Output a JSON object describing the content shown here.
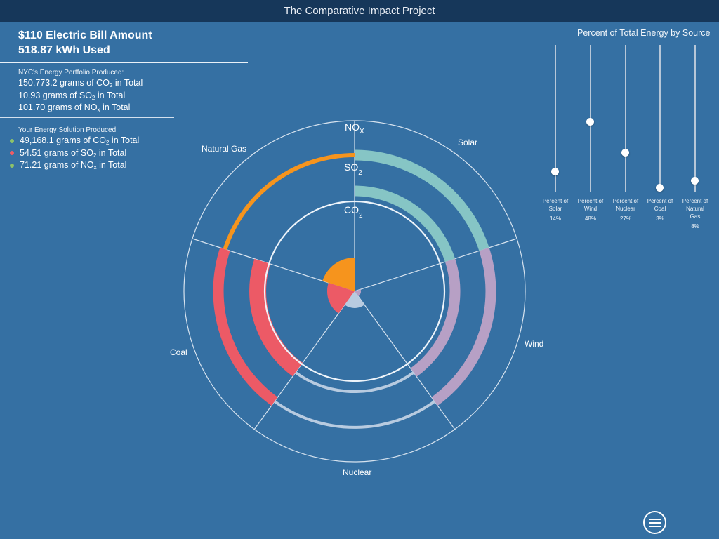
{
  "header": {
    "title": "The Comparative Impact Project"
  },
  "bill": {
    "amount": "$110 Electric Bill Amount",
    "kwh": "518.87 kWh Used"
  },
  "portfolio": {
    "heading": "NYC's Energy Portfolio Produced:",
    "co2_prefix": "150,773.2 grams of CO",
    "co2_sub": "2",
    "co2_suffix": " in Total",
    "so2_prefix": "10.93 grams of SO",
    "so2_sub": "2",
    "so2_suffix": " in Total",
    "nox_prefix": "101.70 grams of NO",
    "nox_sub": "x",
    "nox_suffix": " in Total"
  },
  "solution": {
    "heading": "Your Energy Solution Produced:",
    "co2_prefix": "49,168.1 grams of CO",
    "co2_sub": "2",
    "co2_suffix": " in Total",
    "co2_color": "#8dc26a",
    "so2_prefix": "54.51 grams of SO",
    "so2_sub": "2",
    "so2_suffix": " in Total",
    "so2_color": "#ee5d66",
    "nox_prefix": "71.21 grams of NO",
    "nox_sub": "x",
    "nox_suffix": " in Total",
    "nox_color": "#8dc26a"
  },
  "chart": {
    "ring_labels": {
      "nox_main": "NO",
      "nox_sub": "X",
      "so2_main": "SO",
      "so2_sub": "2",
      "co2_main": "CO",
      "co2_sub": "2"
    },
    "sources": [
      "Solar",
      "Wind",
      "Nuclear",
      "Coal",
      "Natural Gas"
    ],
    "colors": {
      "solar": "#86c5c5",
      "wind": "#b7a0c5",
      "nuclear": "#b8cbe0",
      "coal": "#ec5a66",
      "gas": "#f6941d"
    }
  },
  "sliders": {
    "title": "Percent of Total Energy by Source",
    "items": [
      {
        "label1": "Percent of",
        "label2": "Solar",
        "label3": "",
        "value": "14%",
        "fraction": 0.14
      },
      {
        "label1": "Percent of",
        "label2": "Wind",
        "label3": "",
        "value": "48%",
        "fraction": 0.48
      },
      {
        "label1": "Percent of",
        "label2": "Nuclear",
        "label3": "",
        "value": "27%",
        "fraction": 0.27
      },
      {
        "label1": "Percent of",
        "label2": "Coal",
        "label3": "",
        "value": "3%",
        "fraction": 0.03
      },
      {
        "label1": "Percent of",
        "label2": "Natural",
        "label3": "Gas",
        "value": "8%",
        "fraction": 0.08
      }
    ]
  },
  "menu": {
    "icon": "menu-icon"
  }
}
